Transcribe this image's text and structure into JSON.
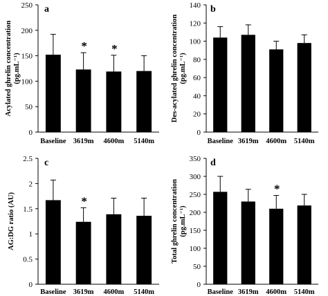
{
  "chart_data": [
    {
      "type": "bar",
      "panel_label": "a",
      "ylabel": "Acylated ghrelin concentration",
      "ylabel_unit": "(pg.mL⁻¹)",
      "categories": [
        "Baseline",
        "3619m",
        "4600m",
        "5140m"
      ],
      "values": [
        152,
        123,
        119,
        120
      ],
      "errors": [
        40,
        33,
        32,
        30
      ],
      "significant": [
        false,
        true,
        true,
        false
      ],
      "marker": "*",
      "ylim": [
        0,
        250
      ],
      "yticks": [
        "0",
        "50",
        "100",
        "150",
        "200",
        "250"
      ],
      "bar_color": "#000000"
    },
    {
      "type": "bar",
      "panel_label": "b",
      "ylabel": "Des-acylated ghrelin concentration",
      "ylabel_unit": "(pg.mL⁻¹)",
      "categories": [
        "Baseline",
        "3619m",
        "4600m",
        "5140m"
      ],
      "values": [
        104,
        107,
        91,
        98
      ],
      "errors": [
        12,
        11,
        9,
        9
      ],
      "significant": [
        false,
        false,
        false,
        false
      ],
      "marker": "*",
      "ylim": [
        0,
        140
      ],
      "yticks": [
        "0",
        "20",
        "40",
        "60",
        "80",
        "100",
        "120",
        "140"
      ],
      "bar_color": "#000000"
    },
    {
      "type": "bar",
      "panel_label": "c",
      "ylabel": "AG:DG ratio (AU)",
      "ylabel_unit": "",
      "categories": [
        "Baseline",
        "3619m",
        "4600m",
        "5140m"
      ],
      "values": [
        1.67,
        1.24,
        1.39,
        1.36
      ],
      "errors": [
        0.4,
        0.28,
        0.32,
        0.35
      ],
      "significant": [
        false,
        true,
        false,
        false
      ],
      "marker": "*",
      "ylim": [
        0,
        2.5
      ],
      "yticks": [
        "0",
        "0.5",
        "1",
        "1.5",
        "2",
        "2.5"
      ],
      "bar_color": "#000000"
    },
    {
      "type": "bar",
      "panel_label": "d",
      "ylabel": "Total ghrelin concentration",
      "ylabel_unit": "(pg.mL⁻¹)",
      "categories": [
        "Baseline",
        "3619m",
        "4600m",
        "5140m"
      ],
      "values": [
        257,
        230,
        210,
        219
      ],
      "errors": [
        43,
        34,
        37,
        31
      ],
      "significant": [
        false,
        false,
        true,
        false
      ],
      "marker": "*",
      "ylim": [
        0,
        350
      ],
      "yticks": [
        "0",
        "50",
        "100",
        "150",
        "200",
        "250",
        "300",
        "350"
      ],
      "bar_color": "#000000"
    }
  ]
}
